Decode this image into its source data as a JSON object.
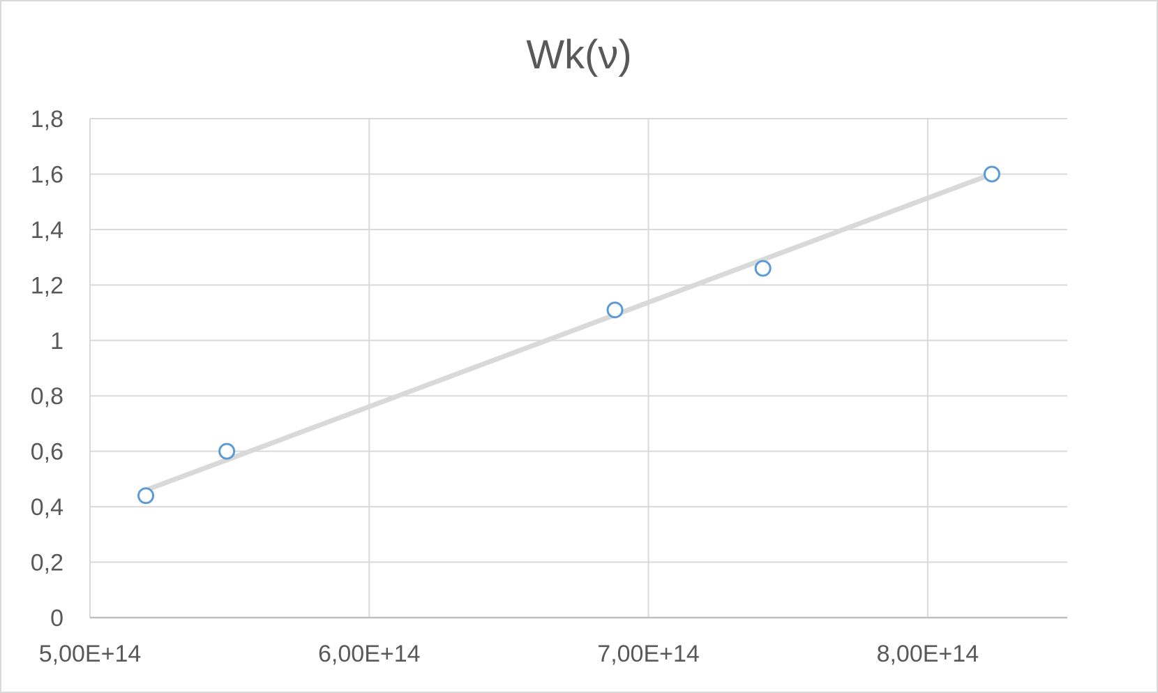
{
  "chart_data": {
    "type": "scatter",
    "title": "Wk(ν)",
    "xlabel": "",
    "ylabel": "",
    "xlim": [
      500000000000000,
      850000000000000
    ],
    "ylim": [
      0,
      1.8
    ],
    "grid": true,
    "x_ticks": [
      500000000000000,
      600000000000000,
      700000000000000,
      800000000000000
    ],
    "x_tick_labels": [
      "5,00E+14",
      "6,00E+14",
      "7,00E+14",
      "8,00E+14"
    ],
    "y_ticks": [
      0,
      0.2,
      0.4,
      0.6,
      0.8,
      1,
      1.2,
      1.4,
      1.6,
      1.8
    ],
    "y_tick_labels": [
      "0",
      "0,2",
      "0,4",
      "0,6",
      "0,8",
      "1",
      "1,2",
      "1,4",
      "1,6",
      "1,8"
    ],
    "series": [
      {
        "name": "Wk",
        "x": [
          520000000000000,
          549000000000000,
          688000000000000,
          741000000000000,
          823000000000000
        ],
        "y": [
          0.44,
          0.6,
          1.11,
          1.26,
          1.6
        ],
        "marker": "circle-open",
        "color": "#5b9bd5"
      }
    ],
    "trendline": {
      "type": "linear",
      "x": [
        520000000000000,
        823000000000000
      ],
      "y": [
        0.46,
        1.6
      ],
      "color": "#d9d9d9"
    }
  }
}
